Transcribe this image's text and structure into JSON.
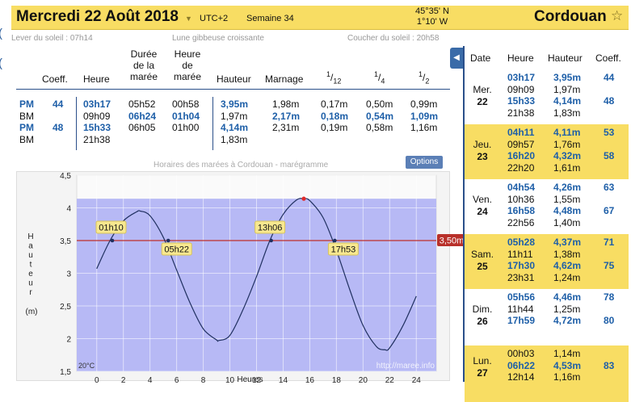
{
  "header": {
    "date_title": "Mercredi 22 Août 2018",
    "utc": "UTC+2",
    "week": "Semaine 34",
    "lat": "45°35' N",
    "lon": "1°10' W",
    "place": "Cordouan"
  },
  "info": {
    "sunrise": "Lever du soleil : 07h14",
    "moon": "Lune gibbeuse croissante",
    "sunset": "Coucher du soleil : 20h58"
  },
  "table": {
    "headers": {
      "coeff": "Coeff.",
      "heure": "Heure",
      "duree": "Durée de la marée",
      "heure_maree": "Heure de marée",
      "hauteur": "Hauteur",
      "marnage": "Marnage",
      "f12": "1/12",
      "f4": "1/4",
      "f2": "1/2"
    },
    "rows": [
      {
        "type": "PM",
        "coeff": "44",
        "heure": "03h17",
        "duree": "05h52",
        "hm": "00h58",
        "hauteur": "3,95m",
        "marnage": "1,98m",
        "f12": "0,17m",
        "f4": "0,50m",
        "f2": "0,99m"
      },
      {
        "type": "BM",
        "coeff": "",
        "heure": "09h09",
        "duree": "06h24",
        "hm": "01h04",
        "hauteur": "1,97m",
        "marnage": "2,17m",
        "f12": "0,18m",
        "f4": "0,54m",
        "f2": "1,09m"
      },
      {
        "type": "PM",
        "coeff": "48",
        "heure": "15h33",
        "duree": "06h05",
        "hm": "01h00",
        "hauteur": "4,14m",
        "marnage": "2,31m",
        "f12": "0,19m",
        "f4": "0,58m",
        "f2": "1,16m"
      },
      {
        "type": "BM",
        "coeff": "",
        "heure": "21h38",
        "duree": "",
        "hm": "",
        "hauteur": "1,83m",
        "marnage": "",
        "f12": "",
        "f4": "",
        "f2": ""
      }
    ]
  },
  "chart": {
    "title": "Horaires des marées à Cordouan - marégramme",
    "options_label": "Options",
    "temp": "20°C",
    "watermark": "http://maree.info",
    "threshold_label": "3,50m",
    "xlabel": "Heures",
    "ylabel_letters": [
      "H",
      "a",
      "u",
      "t",
      "e",
      "u",
      "r"
    ],
    "yunit": "(m)",
    "callouts": [
      "01h10",
      "05h22",
      "13h06",
      "17h53"
    ]
  },
  "chart_data": {
    "type": "line",
    "x": [
      0,
      1,
      2,
      3,
      3.28,
      4,
      5,
      6,
      7,
      8,
      9,
      9.15,
      10,
      11,
      12,
      13,
      14,
      15,
      15.55,
      16,
      17,
      18,
      19,
      20,
      21,
      21.63,
      22,
      23,
      24
    ],
    "y": [
      3.07,
      3.5,
      3.8,
      3.94,
      3.95,
      3.88,
      3.55,
      3.05,
      2.55,
      2.15,
      1.98,
      1.97,
      2.05,
      2.45,
      2.95,
      3.5,
      3.9,
      4.12,
      4.14,
      4.11,
      3.85,
      3.35,
      2.75,
      2.2,
      1.88,
      1.83,
      1.86,
      2.2,
      2.65
    ],
    "xlim": [
      -1.5,
      25.5
    ],
    "ylim": [
      1.5,
      4.5
    ],
    "xticks": [
      0,
      2,
      4,
      6,
      8,
      10,
      12,
      14,
      16,
      18,
      20,
      22,
      24
    ],
    "yticks": [
      "1,5",
      "2",
      "2,5",
      "3",
      "3,5",
      "4",
      "4,5"
    ],
    "yticks_values": [
      1.5,
      2,
      2.5,
      3,
      3.5,
      4,
      4.5
    ],
    "threshold": 3.5,
    "band_top": 4.14,
    "crossings": [
      1.17,
      5.37,
      13.1,
      17.88
    ],
    "colors": {
      "band": "#b7b9f5",
      "threshold": "#c0302a",
      "curve": "#203060",
      "point": "#e02a2a"
    }
  },
  "right_panel": {
    "headers": {
      "date": "Date",
      "heure": "Heure",
      "hauteur": "Hauteur",
      "coeff": "Coeff."
    },
    "days": [
      {
        "dow": "Mer.",
        "num": "22",
        "yellow": false,
        "entries": [
          {
            "h": "03h17",
            "v": "3,95m",
            "hi": true
          },
          {
            "h": "09h09",
            "v": "1,97m",
            "hi": false
          },
          {
            "h": "15h33",
            "v": "4,14m",
            "hi": true
          },
          {
            "h": "21h38",
            "v": "1,83m",
            "hi": false
          }
        ],
        "coeffs": [
          "44",
          "48"
        ]
      },
      {
        "dow": "Jeu.",
        "num": "23",
        "yellow": true,
        "entries": [
          {
            "h": "04h11",
            "v": "4,11m",
            "hi": true
          },
          {
            "h": "09h57",
            "v": "1,76m",
            "hi": false
          },
          {
            "h": "16h20",
            "v": "4,32m",
            "hi": true
          },
          {
            "h": "22h20",
            "v": "1,61m",
            "hi": false
          }
        ],
        "coeffs": [
          "53",
          "58"
        ]
      },
      {
        "dow": "Ven.",
        "num": "24",
        "yellow": false,
        "entries": [
          {
            "h": "04h54",
            "v": "4,26m",
            "hi": true
          },
          {
            "h": "10h36",
            "v": "1,55m",
            "hi": false
          },
          {
            "h": "16h58",
            "v": "4,48m",
            "hi": true
          },
          {
            "h": "22h56",
            "v": "1,40m",
            "hi": false
          }
        ],
        "coeffs": [
          "63",
          "67"
        ]
      },
      {
        "dow": "Sam.",
        "num": "25",
        "yellow": true,
        "entries": [
          {
            "h": "05h28",
            "v": "4,37m",
            "hi": true
          },
          {
            "h": "11h11",
            "v": "1,38m",
            "hi": false
          },
          {
            "h": "17h30",
            "v": "4,62m",
            "hi": true
          },
          {
            "h": "23h31",
            "v": "1,24m",
            "hi": false
          }
        ],
        "coeffs": [
          "71",
          "75"
        ]
      },
      {
        "dow": "Dim.",
        "num": "26",
        "yellow": false,
        "entries": [
          {
            "h": "05h56",
            "v": "4,46m",
            "hi": true
          },
          {
            "h": "11h44",
            "v": "1,25m",
            "hi": false
          },
          {
            "h": "17h59",
            "v": "4,72m",
            "hi": true
          }
        ],
        "coeffs": [
          "78",
          "80"
        ]
      },
      {
        "dow": "Lun.",
        "num": "27",
        "yellow": true,
        "entries": [
          {
            "h": "00h03",
            "v": "1,14m",
            "hi": false
          },
          {
            "h": "06h22",
            "v": "4,53m",
            "hi": true
          },
          {
            "h": "12h14",
            "v": "1,16m",
            "hi": false
          }
        ],
        "coeffs": [
          "83"
        ]
      }
    ]
  }
}
